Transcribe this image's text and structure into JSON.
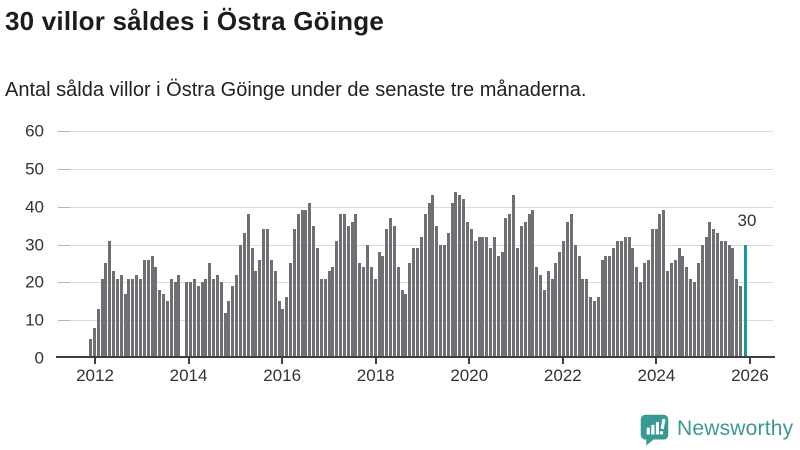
{
  "header": {
    "title": "30 villor såldes i Östra Göinge",
    "subtitle": "Antal sålda villor i Östra Göinge under de senaste tre månaderna."
  },
  "chart_data": {
    "type": "bar",
    "title": "30 villor såldes i Östra Göinge",
    "x_start_year": 2012,
    "interval": "monthly",
    "values": [
      5,
      8,
      13,
      21,
      25,
      31,
      23,
      21,
      22,
      17,
      21,
      21,
      22,
      21,
      26,
      26,
      27,
      24,
      18,
      17,
      15,
      21,
      20,
      22,
      0,
      20,
      20,
      21,
      19,
      20,
      21,
      25,
      21,
      22,
      20,
      12,
      15,
      19,
      22,
      30,
      33,
      38,
      29,
      23,
      26,
      34,
      34,
      26,
      23,
      15,
      13,
      16,
      25,
      34,
      38,
      39,
      39,
      41,
      35,
      29,
      21,
      21,
      23,
      24,
      31,
      38,
      38,
      35,
      36,
      38,
      25,
      24,
      30,
      24,
      21,
      28,
      27,
      34,
      37,
      35,
      24,
      18,
      17,
      25,
      29,
      29,
      32,
      38,
      41,
      43,
      35,
      30,
      30,
      33,
      41,
      44,
      43,
      42,
      36,
      34,
      31,
      32,
      32,
      32,
      29,
      32,
      27,
      28,
      37,
      38,
      43,
      29,
      35,
      36,
      38,
      39,
      24,
      22,
      18,
      23,
      21,
      25,
      28,
      31,
      36,
      38,
      30,
      27,
      21,
      21,
      16,
      15,
      16,
      26,
      27,
      27,
      29,
      31,
      31,
      32,
      32,
      29,
      24,
      20,
      25,
      26,
      34,
      34,
      38,
      39,
      23,
      25,
      26,
      29,
      27,
      24,
      21,
      20,
      25,
      30,
      32,
      36,
      34,
      33,
      31,
      31,
      30,
      29,
      21,
      19,
      30
    ],
    "highlight_last": true,
    "last_value_label": "30",
    "ylim": [
      0,
      60
    ],
    "y_ticks": [
      0,
      10,
      20,
      30,
      40,
      50,
      60
    ],
    "x_tick_labels": [
      "2012",
      "2014",
      "2016",
      "2018",
      "2020",
      "2022",
      "2024",
      "2026"
    ],
    "grid": true,
    "legend": false,
    "colors": {
      "bar": "#6f6f74",
      "highlight": "#14999e",
      "axis": "#3f3f3f",
      "gridline": "#dcdcdc",
      "label": "#333333"
    }
  },
  "branding": {
    "name": "Newsworthy",
    "color": "#3a9a93",
    "icon": "newsworthy-speech-bubble-chart-icon"
  }
}
